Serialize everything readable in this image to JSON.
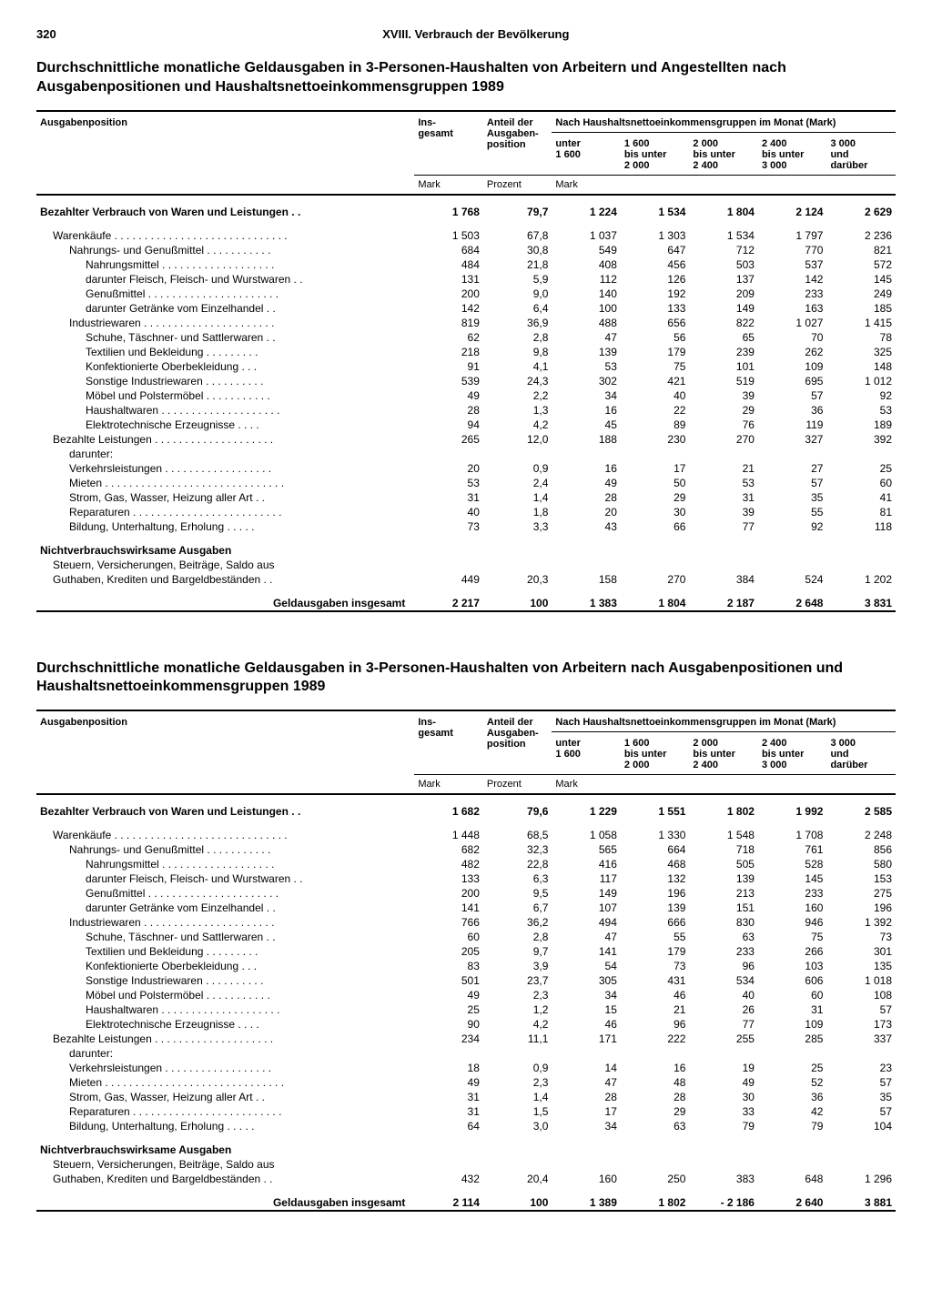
{
  "page_number": "320",
  "chapter": "XVIII. Verbrauch der Bevölkerung",
  "tables": [
    {
      "title": "Durchschnittliche monatliche Geldausgaben in 3-Personen-Haushalten von Arbeitern und Angestellten nach Ausgabenpositionen und Haushaltsnettoeinkommensgruppen 1989",
      "col_headers": {
        "position": "Ausgabenposition",
        "insgesamt": "Ins-\ngesamt",
        "anteil": "Anteil der\nAusgaben-\nposition",
        "group_header": "Nach Haushaltsnettoeinkommensgruppen im Monat (Mark)",
        "g1": "unter\n1 600",
        "g2": "1 600\nbis unter\n2 000",
        "g3": "2 000\nbis unter\n2 400",
        "g4": "2 400\nbis unter\n3 000",
        "g5": "3 000\nund\ndarüber",
        "unit_mark": "Mark",
        "unit_prozent": "Prozent",
        "unit_mark2": "Mark"
      },
      "rows": [
        {
          "label": "Bezahlter Verbrauch von Waren und Leistungen",
          "dots": true,
          "bold": true,
          "indent": 0,
          "v": [
            "1 768",
            "79,7",
            "1 224",
            "1 534",
            "1 804",
            "2 124",
            "2 629"
          ]
        },
        {
          "spacer": true
        },
        {
          "label": "Warenkäufe",
          "dots": true,
          "indent": 1,
          "v": [
            "1 503",
            "67,8",
            "1 037",
            "1 303",
            "1 534",
            "1 797",
            "2 236"
          ]
        },
        {
          "label": "Nahrungs- und Genußmittel",
          "dots": true,
          "indent": 2,
          "v": [
            "684",
            "30,8",
            "549",
            "647",
            "712",
            "770",
            "821"
          ]
        },
        {
          "label": "Nahrungsmittel",
          "dots": true,
          "indent": 3,
          "v": [
            "484",
            "21,8",
            "408",
            "456",
            "503",
            "537",
            "572"
          ]
        },
        {
          "label": "darunter Fleisch, Fleisch- und Wurstwaren",
          "dots": true,
          "indent": 3,
          "v": [
            "131",
            "5,9",
            "112",
            "126",
            "137",
            "142",
            "145"
          ]
        },
        {
          "label": "Genußmittel",
          "dots": true,
          "indent": 3,
          "v": [
            "200",
            "9,0",
            "140",
            "192",
            "209",
            "233",
            "249"
          ]
        },
        {
          "label": "darunter Getränke vom Einzelhandel",
          "dots": true,
          "indent": 3,
          "v": [
            "142",
            "6,4",
            "100",
            "133",
            "149",
            "163",
            "185"
          ]
        },
        {
          "label": "Industriewaren",
          "dots": true,
          "indent": 2,
          "v": [
            "819",
            "36,9",
            "488",
            "656",
            "822",
            "1 027",
            "1 415"
          ]
        },
        {
          "label": "Schuhe, Täschner- und Sattlerwaren",
          "dots": true,
          "indent": 3,
          "v": [
            "62",
            "2,8",
            "47",
            "56",
            "65",
            "70",
            "78"
          ]
        },
        {
          "label": "Textilien und Bekleidung",
          "dots": true,
          "indent": 3,
          "v": [
            "218",
            "9,8",
            "139",
            "179",
            "239",
            "262",
            "325"
          ]
        },
        {
          "label": "Konfektionierte Oberbekleidung",
          "dots": true,
          "indent": 3,
          "v": [
            "91",
            "4,1",
            "53",
            "75",
            "101",
            "109",
            "148"
          ]
        },
        {
          "label": "Sonstige Industriewaren",
          "dots": true,
          "indent": 3,
          "v": [
            "539",
            "24,3",
            "302",
            "421",
            "519",
            "695",
            "1 012"
          ]
        },
        {
          "label": "Möbel und Polstermöbel",
          "dots": true,
          "indent": 3,
          "v": [
            "49",
            "2,2",
            "34",
            "40",
            "39",
            "57",
            "92"
          ]
        },
        {
          "label": "Haushaltwaren",
          "dots": true,
          "indent": 3,
          "v": [
            "28",
            "1,3",
            "16",
            "22",
            "29",
            "36",
            "53"
          ]
        },
        {
          "label": "Elektrotechnische Erzeugnisse",
          "dots": true,
          "indent": 3,
          "v": [
            "94",
            "4,2",
            "45",
            "89",
            "76",
            "119",
            "189"
          ]
        },
        {
          "label": "Bezahlte Leistungen",
          "dots": true,
          "indent": 1,
          "v": [
            "265",
            "12,0",
            "188",
            "230",
            "270",
            "327",
            "392"
          ]
        },
        {
          "label": "darunter:",
          "indent": 2,
          "v": [
            "",
            "",
            "",
            "",
            "",
            "",
            ""
          ]
        },
        {
          "label": "Verkehrsleistungen",
          "dots": true,
          "indent": 2,
          "v": [
            "20",
            "0,9",
            "16",
            "17",
            "21",
            "27",
            "25"
          ]
        },
        {
          "label": "Mieten",
          "dots": true,
          "indent": 2,
          "v": [
            "53",
            "2,4",
            "49",
            "50",
            "53",
            "57",
            "60"
          ]
        },
        {
          "label": "Strom, Gas, Wasser, Heizung aller Art",
          "dots": true,
          "indent": 2,
          "v": [
            "31",
            "1,4",
            "28",
            "29",
            "31",
            "35",
            "41"
          ]
        },
        {
          "label": "Reparaturen",
          "dots": true,
          "indent": 2,
          "v": [
            "40",
            "1,8",
            "20",
            "30",
            "39",
            "55",
            "81"
          ]
        },
        {
          "label": "Bildung, Unterhaltung, Erholung",
          "dots": true,
          "indent": 2,
          "v": [
            "73",
            "3,3",
            "43",
            "66",
            "77",
            "92",
            "118"
          ]
        },
        {
          "spacer": true
        },
        {
          "label": "Nichtverbrauchswirksame Ausgaben",
          "bold": true,
          "indent": 0,
          "v": [
            "",
            "",
            "",
            "",
            "",
            "",
            ""
          ]
        },
        {
          "label": "Steuern, Versicherungen, Beiträge, Saldo aus",
          "indent": 1,
          "v": [
            "",
            "",
            "",
            "",
            "",
            "",
            ""
          ]
        },
        {
          "label": "Guthaben, Krediten und Bargeldbeständen",
          "dots": true,
          "indent": 1,
          "v": [
            "449",
            "20,3",
            "158",
            "270",
            "384",
            "524",
            "1 202"
          ]
        },
        {
          "spacer": true
        },
        {
          "label": "Geldausgaben insgesamt",
          "bold": true,
          "total": true,
          "v": [
            "2 217",
            "100",
            "1 383",
            "1 804",
            "2 187",
            "2 648",
            "3 831"
          ]
        }
      ]
    },
    {
      "title": "Durchschnittliche monatliche Geldausgaben in 3-Personen-Haushalten von Arbeitern nach Ausgabenpositionen und Haushaltsnettoeinkommensgruppen 1989",
      "rows": [
        {
          "label": "Bezahlter Verbrauch von Waren und Leistungen",
          "dots": true,
          "bold": true,
          "indent": 0,
          "v": [
            "1 682",
            "79,6",
            "1 229",
            "1 551",
            "1 802",
            "1 992",
            "2 585"
          ]
        },
        {
          "spacer": true
        },
        {
          "label": "Warenkäufe",
          "dots": true,
          "indent": 1,
          "v": [
            "1 448",
            "68,5",
            "1 058",
            "1 330",
            "1 548",
            "1 708",
            "2 248"
          ]
        },
        {
          "label": "Nahrungs- und Genußmittel",
          "dots": true,
          "indent": 2,
          "v": [
            "682",
            "32,3",
            "565",
            "664",
            "718",
            "761",
            "856"
          ]
        },
        {
          "label": "Nahrungsmittel",
          "dots": true,
          "indent": 3,
          "v": [
            "482",
            "22,8",
            "416",
            "468",
            "505",
            "528",
            "580"
          ]
        },
        {
          "label": "darunter Fleisch, Fleisch- und Wurstwaren",
          "dots": true,
          "indent": 3,
          "v": [
            "133",
            "6,3",
            "117",
            "132",
            "139",
            "145",
            "153"
          ]
        },
        {
          "label": "Genußmittel",
          "dots": true,
          "indent": 3,
          "v": [
            "200",
            "9,5",
            "149",
            "196",
            "213",
            "233",
            "275"
          ]
        },
        {
          "label": "darunter Getränke vom Einzelhandel",
          "dots": true,
          "indent": 3,
          "v": [
            "141",
            "6,7",
            "107",
            "139",
            "151",
            "160",
            "196"
          ]
        },
        {
          "label": "Industriewaren",
          "dots": true,
          "indent": 2,
          "v": [
            "766",
            "36,2",
            "494",
            "666",
            "830",
            "946",
            "1 392"
          ]
        },
        {
          "label": "Schuhe, Täschner- und Sattlerwaren",
          "dots": true,
          "indent": 3,
          "v": [
            "60",
            "2,8",
            "47",
            "55",
            "63",
            "75",
            "73"
          ]
        },
        {
          "label": "Textilien und Bekleidung",
          "dots": true,
          "indent": 3,
          "v": [
            "205",
            "9,7",
            "141",
            "179",
            "233",
            "266",
            "301"
          ]
        },
        {
          "label": "Konfektionierte Oberbekleidung",
          "dots": true,
          "indent": 3,
          "v": [
            "83",
            "3,9",
            "54",
            "73",
            "96",
            "103",
            "135"
          ]
        },
        {
          "label": "Sonstige Industriewaren",
          "dots": true,
          "indent": 3,
          "v": [
            "501",
            "23,7",
            "305",
            "431",
            "534",
            "606",
            "1 018"
          ]
        },
        {
          "label": "Möbel und Polstermöbel",
          "dots": true,
          "indent": 3,
          "v": [
            "49",
            "2,3",
            "34",
            "46",
            "40",
            "60",
            "108"
          ]
        },
        {
          "label": "Haushaltwaren",
          "dots": true,
          "indent": 3,
          "v": [
            "25",
            "1,2",
            "15",
            "21",
            "26",
            "31",
            "57"
          ]
        },
        {
          "label": "Elektrotechnische Erzeugnisse",
          "dots": true,
          "indent": 3,
          "v": [
            "90",
            "4,2",
            "46",
            "96",
            "77",
            "109",
            "173"
          ]
        },
        {
          "label": "Bezahlte Leistungen",
          "dots": true,
          "indent": 1,
          "v": [
            "234",
            "11,1",
            "171",
            "222",
            "255",
            "285",
            "337"
          ]
        },
        {
          "label": "darunter:",
          "indent": 2,
          "v": [
            "",
            "",
            "",
            "",
            "",
            "",
            ""
          ]
        },
        {
          "label": "Verkehrsleistungen",
          "dots": true,
          "indent": 2,
          "v": [
            "18",
            "0,9",
            "14",
            "16",
            "19",
            "25",
            "23"
          ]
        },
        {
          "label": "Mieten",
          "dots": true,
          "indent": 2,
          "v": [
            "49",
            "2,3",
            "47",
            "48",
            "49",
            "52",
            "57"
          ]
        },
        {
          "label": "Strom, Gas, Wasser, Heizung aller Art",
          "dots": true,
          "indent": 2,
          "v": [
            "31",
            "1,4",
            "28",
            "28",
            "30",
            "36",
            "35"
          ]
        },
        {
          "label": "Reparaturen",
          "dots": true,
          "indent": 2,
          "v": [
            "31",
            "1,5",
            "17",
            "29",
            "33",
            "42",
            "57"
          ]
        },
        {
          "label": "Bildung, Unterhaltung, Erholung",
          "dots": true,
          "indent": 2,
          "v": [
            "64",
            "3,0",
            "34",
            "63",
            "79",
            "79",
            "104"
          ]
        },
        {
          "spacer": true
        },
        {
          "label": "Nichtverbrauchswirksame Ausgaben",
          "bold": true,
          "indent": 0,
          "v": [
            "",
            "",
            "",
            "",
            "",
            "",
            ""
          ]
        },
        {
          "label": "Steuern, Versicherungen, Beiträge, Saldo aus",
          "indent": 1,
          "v": [
            "",
            "",
            "",
            "",
            "",
            "",
            ""
          ]
        },
        {
          "label": "Guthaben, Krediten und Bargeldbeständen",
          "dots": true,
          "indent": 1,
          "v": [
            "432",
            "20,4",
            "160",
            "250",
            "383",
            "648",
            "1 296"
          ]
        },
        {
          "spacer": true
        },
        {
          "label": "Geldausgaben insgesamt",
          "bold": true,
          "total": true,
          "v": [
            "2 114",
            "100",
            "1 389",
            "1 802",
            "- 2 186",
            "2 640",
            "3 881"
          ]
        }
      ]
    }
  ]
}
